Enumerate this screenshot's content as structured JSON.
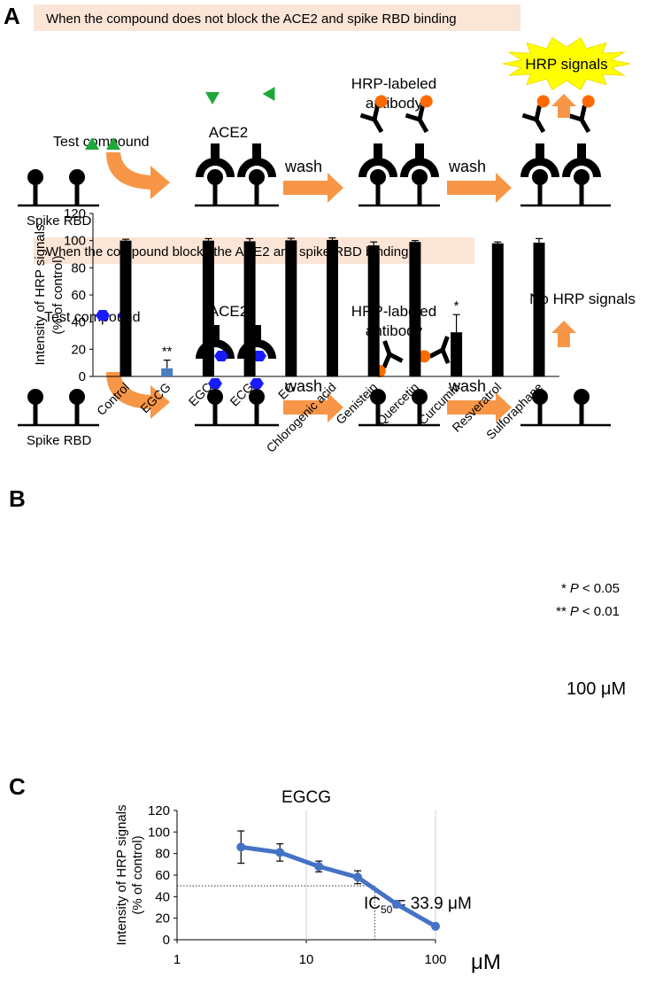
{
  "panel_a": {
    "label": "A",
    "rows": [
      {
        "banner": "When the compound does not block the ACE2 and spike RBD binding",
        "test_compound": "Test compound",
        "spike_rbd": "Spike RBD",
        "ace2": "ACE2",
        "wash_1": "wash",
        "antibody": [
          "HRP-labeled",
          "antibody"
        ],
        "wash_2": "wash",
        "result": "HRP signals"
      },
      {
        "banner": "When the compound blocks the ACE2 and spike RBD binding",
        "test_compound": "Test compound",
        "spike_rbd": "Spike RBD",
        "ace2": "ACE2",
        "wash_1": "wash",
        "antibody": [
          "HRP-labeled",
          "antibody"
        ],
        "wash_2": "wash",
        "result": "No HRP signals"
      }
    ]
  },
  "chart_data": [
    {
      "panel_label": "B",
      "type": "bar",
      "ylabel": [
        "Intensity of HRP signals",
        "(% of control)"
      ],
      "categories": [
        "Control",
        "EGCG",
        "EGC",
        "ECG",
        "EC",
        "Chlorogenic acid",
        "Genistein",
        "Quercetin",
        "Curcumin",
        "Resveratrol",
        "Sulforaphane"
      ],
      "values": [
        100,
        6,
        100,
        99.5,
        100.2,
        100.5,
        96.5,
        99,
        32.5,
        98,
        98.5
      ],
      "errors": [
        1,
        6,
        1.5,
        2,
        1.5,
        1.5,
        2.5,
        1,
        13,
        1,
        3
      ],
      "colors": [
        "#000000",
        "#4a7ebb",
        "#000000",
        "#000000",
        "#000000",
        "#000000",
        "#000000",
        "#000000",
        "#000000",
        "#000000",
        "#000000"
      ],
      "annotations": [
        null,
        "**",
        null,
        null,
        null,
        null,
        null,
        null,
        "*",
        null,
        null
      ],
      "ylim": [
        0,
        120
      ],
      "yticks": [
        0,
        20,
        40,
        60,
        80,
        100,
        120
      ],
      "significance_legend": [
        {
          "stars": "*",
          "p": "P",
          "condition": "< 0.05"
        },
        {
          "stars": "**",
          "p": "P",
          "condition": "< 0.01"
        }
      ],
      "unit_note": "100 μM"
    },
    {
      "panel_label": "C",
      "type": "line",
      "title": "EGCG",
      "ylabel": [
        "Intensity of HRP signals",
        "(% of control)"
      ],
      "xlabel": "μM",
      "log_x": true,
      "x": [
        3.125,
        6.25,
        12.5,
        25,
        50,
        100
      ],
      "series": [
        {
          "color": "#4472c4",
          "values": [
            86,
            81,
            68,
            58,
            33,
            12.5
          ],
          "errors": [
            15,
            8,
            5,
            6,
            3,
            2
          ]
        }
      ],
      "xlim": [
        1,
        100
      ],
      "xticks": [
        1,
        10,
        100
      ],
      "grid_x": true,
      "ylim": [
        0,
        120
      ],
      "yticks": [
        0,
        20,
        40,
        60,
        80,
        100,
        120
      ],
      "ic50": {
        "label": [
          "IC",
          "50",
          "= 33.9 μM"
        ],
        "value": 33.9,
        "level": 50
      }
    }
  ]
}
